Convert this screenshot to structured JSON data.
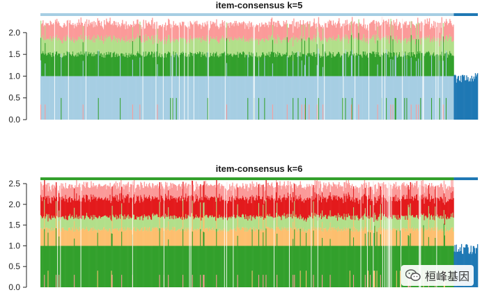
{
  "chart_data": [
    {
      "type": "bar",
      "subtype": "stacked-consensus",
      "title": "item-consensus k=5",
      "xlabel": "",
      "ylabel": "",
      "ylim": [
        0,
        2.35
      ],
      "ytick_labels": [
        "0.0",
        "0.5",
        "1.0",
        "1.5",
        "2.0"
      ],
      "yticks": [
        0,
        0.5,
        1.0,
        1.5,
        2.0
      ],
      "n_items": 600,
      "group_boundary_fraction": 0.945,
      "series": [
        {
          "name": "",
          "color": "#a6cee3",
          "typical_value": 1.0
        },
        {
          "name": "",
          "color": "#33a02c",
          "typical_value": 0.5
        },
        {
          "name": "",
          "color": "#b2df8a",
          "typical_value": 0.35
        },
        {
          "name": "",
          "color": "#fb9a99",
          "typical_value": 0.35
        },
        {
          "name": "",
          "color": "#1f78b4",
          "typical_value": 0.95
        }
      ],
      "top_bar_colors": [
        "#a6cee3",
        "#1f78b4"
      ],
      "secondary_group_value_range": [
        0.85,
        1.1
      ]
    },
    {
      "type": "bar",
      "subtype": "stacked-consensus",
      "title": "item-consensus k=6",
      "xlabel": "",
      "ylabel": "",
      "ylim": [
        0,
        2.55
      ],
      "ytick_labels": [
        "0.0",
        "0.5",
        "1.0",
        "1.5",
        "2.0",
        "2.5"
      ],
      "yticks": [
        0,
        0.5,
        1.0,
        1.5,
        2.0,
        2.5
      ],
      "n_items": 600,
      "group_boundary_fraction": 0.945,
      "series": [
        {
          "name": "",
          "color": "#33a02c",
          "typical_value": 1.0
        },
        {
          "name": "",
          "color": "#fdbf6f",
          "typical_value": 0.4
        },
        {
          "name": "",
          "color": "#b2df8a",
          "typical_value": 0.3
        },
        {
          "name": "",
          "color": "#e31a1c",
          "typical_value": 0.45
        },
        {
          "name": "",
          "color": "#fb9a99",
          "typical_value": 0.3
        },
        {
          "name": "",
          "color": "#1f78b4",
          "typical_value": 0.9
        }
      ],
      "top_bar_colors": [
        "#33a02c",
        "#1f78b4"
      ],
      "secondary_group_value_range": [
        0.8,
        1.05
      ]
    }
  ],
  "watermark": {
    "text": "桓峰基因",
    "icon": "wechat-icon"
  }
}
